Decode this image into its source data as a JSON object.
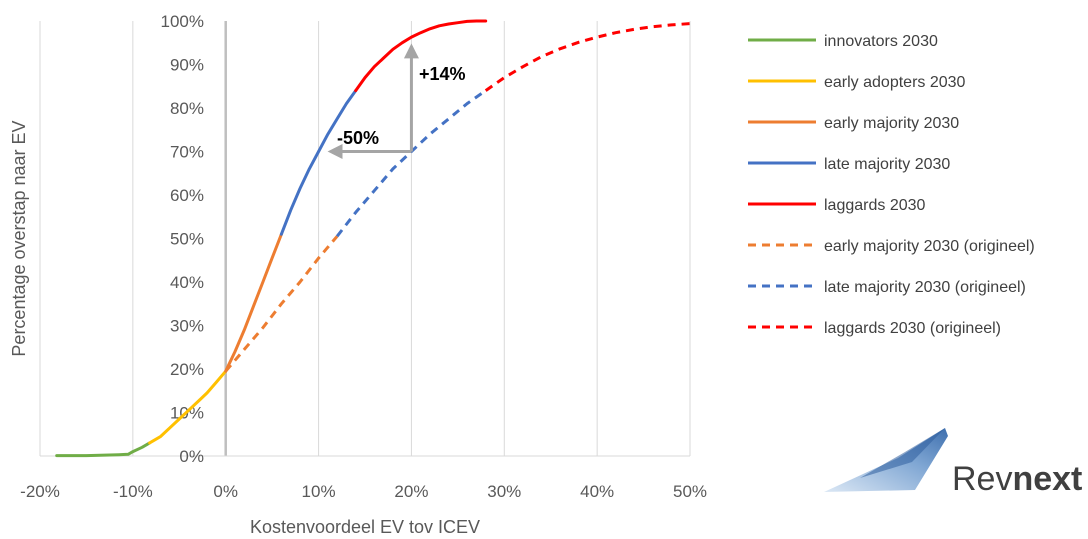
{
  "chart_data": {
    "type": "line",
    "xlabel": "Kostenvoordeel EV tov ICEV",
    "ylabel": "Percentage overstap naar EV",
    "xlim": [
      -20,
      50
    ],
    "ylim": [
      0,
      100
    ],
    "x_ticks": [
      -20,
      -10,
      0,
      10,
      20,
      30,
      40,
      50
    ],
    "y_ticks": [
      0,
      10,
      20,
      30,
      40,
      50,
      60,
      70,
      80,
      90,
      100
    ],
    "x_tick_labels": [
      "-20%",
      "-10%",
      "0%",
      "10%",
      "20%",
      "30%",
      "40%",
      "50%"
    ],
    "y_tick_labels": [
      "0%",
      "10%",
      "20%",
      "30%",
      "40%",
      "50%",
      "60%",
      "70%",
      "80%",
      "90%",
      "100%"
    ],
    "grid": "vertical",
    "legend_position": "right",
    "series": [
      {
        "name": "innovators 2030",
        "color": "#70AD47",
        "dash": "solid",
        "x": [
          -18.2,
          -15,
          -13,
          -11.5,
          -10.5,
          -10,
          -9,
          -8.2
        ],
        "y": [
          0.1,
          0.1,
          0.2,
          0.3,
          0.4,
          1,
          2,
          3
        ]
      },
      {
        "name": "early adopters 2030",
        "color": "#FFC000",
        "dash": "solid",
        "x": [
          -8.2,
          -7,
          -6,
          -5,
          -4,
          -3,
          -2,
          -1,
          0
        ],
        "y": [
          3,
          4.5,
          6.5,
          8.5,
          10.5,
          12.5,
          14.5,
          17,
          19.5
        ]
      },
      {
        "name": "early majority 2030",
        "color": "#ED7D31",
        "dash": "solid",
        "x": [
          0,
          1,
          2,
          3,
          4,
          5,
          6
        ],
        "y": [
          19.5,
          24,
          29,
          34.5,
          40,
          45.5,
          51
        ]
      },
      {
        "name": "late majority 2030",
        "color": "#4472C4",
        "dash": "solid",
        "x": [
          6,
          7,
          8,
          9,
          10,
          11,
          12,
          13,
          14
        ],
        "y": [
          51,
          56.5,
          61.5,
          66,
          70,
          74,
          77.5,
          81,
          84
        ]
      },
      {
        "name": "laggards 2030",
        "color": "#FF0000",
        "dash": "solid",
        "x": [
          14,
          15,
          16,
          17,
          18,
          19,
          20,
          21,
          22,
          23,
          24,
          25,
          26,
          27,
          28
        ],
        "y": [
          84,
          87,
          89.5,
          91.5,
          93.5,
          95,
          96.3,
          97.3,
          98.2,
          98.9,
          99.3,
          99.6,
          99.9,
          100,
          100
        ]
      },
      {
        "name": "early majority 2030 (origineel)",
        "color": "#ED7D31",
        "dash": "dashed",
        "x": [
          0,
          2,
          4,
          6,
          8,
          10,
          12
        ],
        "y": [
          19.5,
          24.5,
          29.5,
          35,
          40,
          45.5,
          50.5
        ]
      },
      {
        "name": "late majority 2030 (origineel)",
        "color": "#4472C4",
        "dash": "dashed",
        "x": [
          12,
          14,
          16,
          18,
          20,
          22,
          24,
          26,
          28
        ],
        "y": [
          50.5,
          56,
          61,
          66,
          70,
          74,
          77.5,
          81,
          84
        ]
      },
      {
        "name": "laggards 2030 (origineel)",
        "color": "#FF0000",
        "dash": "dashed",
        "x": [
          28,
          30,
          32,
          34,
          36,
          38,
          40,
          42,
          44,
          46,
          48,
          50
        ],
        "y": [
          84,
          87,
          89.5,
          91.8,
          93.6,
          95.1,
          96.3,
          97.3,
          98.1,
          98.7,
          99.1,
          99.4
        ]
      }
    ],
    "annotations": [
      {
        "text": "-50%",
        "arrow_from": [
          20,
          70
        ],
        "arrow_to": [
          10,
          70
        ],
        "color": "#A5A5A5"
      },
      {
        "text": "+14%",
        "arrow_from": [
          20,
          70
        ],
        "arrow_to": [
          20,
          96
        ],
        "color": "#A5A5A5"
      }
    ]
  },
  "logo": {
    "text_prefix": "Rev",
    "text_suffix": "next"
  }
}
